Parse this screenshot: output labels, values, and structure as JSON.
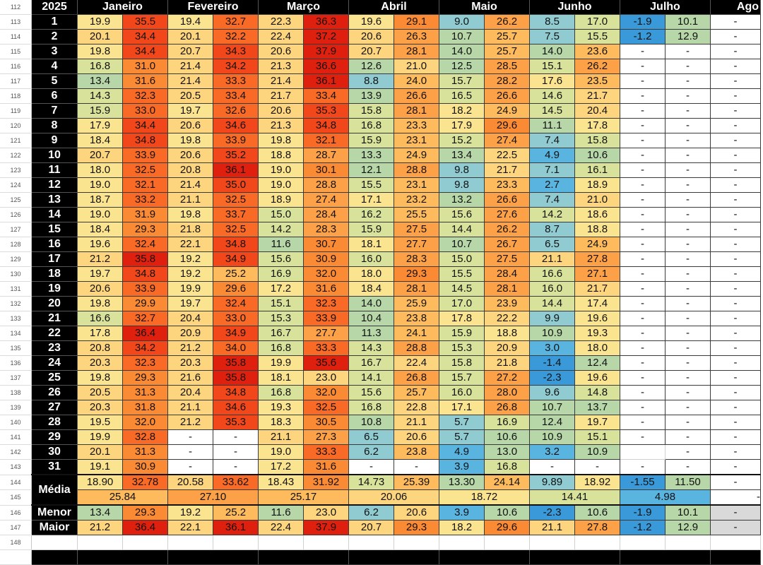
{
  "row_numbers": [
    "112",
    "113",
    "114",
    "115",
    "116",
    "117",
    "118",
    "119",
    "120",
    "121",
    "122",
    "123",
    "124",
    "125",
    "126",
    "127",
    "128",
    "129",
    "130",
    "131",
    "132",
    "133",
    "134",
    "135",
    "136",
    "137",
    "138",
    "139",
    "140",
    "141",
    "142",
    "143",
    "144",
    "145",
    "146",
    "147",
    "148"
  ],
  "year": "2025",
  "months": [
    "Janeiro",
    "Fevereiro",
    "Março",
    "Abril",
    "Maio",
    "Junho",
    "Julho"
  ],
  "partial_month": "Ago",
  "days": [
    {
      "day": "1",
      "cells": [
        "19.9",
        "35.5",
        "19.4",
        "32.7",
        "22.3",
        "36.3",
        "19.6",
        "29.1",
        "9.0",
        "26.2",
        "8.5",
        "17.0",
        "-1.9",
        "10.1",
        "-"
      ]
    },
    {
      "day": "2",
      "cells": [
        "20.1",
        "34.4",
        "20.1",
        "32.2",
        "22.4",
        "37.2",
        "20.6",
        "26.3",
        "10.7",
        "25.7",
        "7.5",
        "15.5",
        "-1.2",
        "12.9",
        "-"
      ]
    },
    {
      "day": "3",
      "cells": [
        "19.8",
        "34.4",
        "20.7",
        "34.3",
        "20.6",
        "37.9",
        "20.7",
        "28.1",
        "14.0",
        "25.7",
        "14.0",
        "23.6",
        "-",
        "-",
        "-"
      ]
    },
    {
      "day": "4",
      "cells": [
        "16.8",
        "31.0",
        "21.4",
        "34.2",
        "21.3",
        "36.6",
        "12.6",
        "21.0",
        "12.5",
        "28.5",
        "15.1",
        "26.2",
        "-",
        "-",
        "-"
      ]
    },
    {
      "day": "5",
      "cells": [
        "13.4",
        "31.6",
        "21.4",
        "33.3",
        "21.4",
        "36.1",
        "8.8",
        "24.0",
        "15.7",
        "28.2",
        "17.6",
        "23.5",
        "-",
        "-",
        "-"
      ]
    },
    {
      "day": "6",
      "cells": [
        "14.3",
        "32.3",
        "20.5",
        "33.4",
        "21.7",
        "33.4",
        "13.9",
        "26.6",
        "16.5",
        "26.6",
        "14.6",
        "21.7",
        "-",
        "-",
        "-"
      ]
    },
    {
      "day": "7",
      "cells": [
        "15.9",
        "33.0",
        "19.7",
        "32.6",
        "20.6",
        "35.3",
        "15.8",
        "28.1",
        "18.2",
        "24.9",
        "14.5",
        "20.4",
        "-",
        "-",
        "-"
      ]
    },
    {
      "day": "8",
      "cells": [
        "17.9",
        "34.4",
        "20.6",
        "34.6",
        "21.3",
        "34.8",
        "16.8",
        "23.3",
        "17.9",
        "29.6",
        "11.1",
        "17.8",
        "-",
        "-",
        "-"
      ]
    },
    {
      "day": "9",
      "cells": [
        "18.4",
        "34.8",
        "19.8",
        "33.9",
        "19.8",
        "32.1",
        "15.9",
        "23.1",
        "15.2",
        "27.4",
        "7.4",
        "15.8",
        "-",
        "-",
        "-"
      ]
    },
    {
      "day": "10",
      "cells": [
        "20.7",
        "33.9",
        "20.6",
        "35.2",
        "18.8",
        "28.7",
        "13.3",
        "24.9",
        "13.4",
        "22.5",
        "4.9",
        "10.6",
        "-",
        "-",
        "-"
      ]
    },
    {
      "day": "11",
      "cells": [
        "18.0",
        "32.5",
        "20.8",
        "36.1",
        "19.0",
        "30.1",
        "12.1",
        "28.8",
        "9.8",
        "21.7",
        "7.1",
        "16.1",
        "-",
        "-",
        "-"
      ]
    },
    {
      "day": "12",
      "cells": [
        "19.0",
        "32.1",
        "21.4",
        "35.0",
        "19.0",
        "28.8",
        "15.5",
        "23.1",
        "9.8",
        "23.3",
        "2.7",
        "18.9",
        "-",
        "-",
        "-"
      ]
    },
    {
      "day": "13",
      "cells": [
        "18.7",
        "33.2",
        "21.1",
        "32.5",
        "18.9",
        "27.4",
        "17.1",
        "23.2",
        "13.2",
        "26.6",
        "7.4",
        "21.0",
        "-",
        "-",
        "-"
      ]
    },
    {
      "day": "14",
      "cells": [
        "19.0",
        "31.9",
        "19.8",
        "33.7",
        "15.0",
        "28.4",
        "16.2",
        "25.5",
        "15.6",
        "27.6",
        "14.2",
        "18.6",
        "-",
        "-",
        "-"
      ]
    },
    {
      "day": "15",
      "cells": [
        "18.4",
        "29.3",
        "21.8",
        "32.5",
        "14.2",
        "28.3",
        "15.9",
        "27.5",
        "14.4",
        "26.2",
        "8.7",
        "18.8",
        "-",
        "-",
        "-"
      ]
    },
    {
      "day": "16",
      "cells": [
        "19.6",
        "32.4",
        "22.1",
        "34.8",
        "11.6",
        "30.7",
        "18.1",
        "27.7",
        "10.7",
        "26.7",
        "6.5",
        "24.9",
        "-",
        "-",
        "-"
      ]
    },
    {
      "day": "17",
      "cells": [
        "21.2",
        "35.8",
        "19.2",
        "34.9",
        "15.6",
        "30.9",
        "16.0",
        "28.3",
        "15.0",
        "27.5",
        "21.1",
        "27.8",
        "-",
        "-",
        "-"
      ]
    },
    {
      "day": "18",
      "cells": [
        "19.7",
        "34.8",
        "19.2",
        "25.2",
        "16.9",
        "32.0",
        "18.0",
        "29.3",
        "15.5",
        "28.4",
        "16.6",
        "27.1",
        "-",
        "-",
        "-"
      ]
    },
    {
      "day": "19",
      "cells": [
        "20.6",
        "33.9",
        "19.9",
        "29.6",
        "17.2",
        "31.6",
        "18.4",
        "28.1",
        "14.5",
        "28.1",
        "16.0",
        "21.7",
        "-",
        "-",
        "-"
      ]
    },
    {
      "day": "20",
      "cells": [
        "19.8",
        "29.9",
        "19.7",
        "32.4",
        "15.1",
        "32.3",
        "14.0",
        "25.9",
        "17.0",
        "23.9",
        "14.4",
        "17.4",
        "-",
        "-",
        "-"
      ]
    },
    {
      "day": "21",
      "cells": [
        "16.6",
        "32.7",
        "20.4",
        "33.0",
        "15.3",
        "33.9",
        "10.4",
        "23.8",
        "17.8",
        "22.2",
        "9.9",
        "19.6",
        "-",
        "-",
        "-"
      ]
    },
    {
      "day": "22",
      "cells": [
        "17.8",
        "36.4",
        "20.9",
        "34.9",
        "16.7",
        "27.7",
        "11.3",
        "24.1",
        "15.9",
        "18.8",
        "10.9",
        "19.3",
        "-",
        "-",
        "-"
      ]
    },
    {
      "day": "23",
      "cells": [
        "20.8",
        "34.2",
        "21.2",
        "34.0",
        "16.8",
        "33.3",
        "14.3",
        "28.8",
        "15.3",
        "20.9",
        "3.0",
        "18.0",
        "-",
        "-",
        "-"
      ]
    },
    {
      "day": "24",
      "cells": [
        "20.3",
        "32.3",
        "20.3",
        "35.8",
        "19.9",
        "35.6",
        "16.7",
        "22.4",
        "15.8",
        "21.8",
        "-1.4",
        "12.4",
        "-",
        "-",
        "-"
      ]
    },
    {
      "day": "25",
      "cells": [
        "19.8",
        "29.3",
        "21.6",
        "35.8",
        "18.1",
        "23.0",
        "14.1",
        "26.8",
        "15.7",
        "27.2",
        "-2.3",
        "19.6",
        "-",
        "-",
        "-"
      ]
    },
    {
      "day": "26",
      "cells": [
        "20.5",
        "31.3",
        "20.4",
        "34.8",
        "16.8",
        "32.0",
        "15.6",
        "25.7",
        "16.0",
        "28.0",
        "9.6",
        "14.8",
        "-",
        "-",
        "-"
      ]
    },
    {
      "day": "27",
      "cells": [
        "20.3",
        "31.8",
        "21.1",
        "34.6",
        "19.3",
        "32.5",
        "16.8",
        "22.8",
        "17.1",
        "26.8",
        "10.7",
        "13.7",
        "-",
        "-",
        "-"
      ]
    },
    {
      "day": "28",
      "cells": [
        "19.5",
        "32.0",
        "21.2",
        "35.3",
        "18.3",
        "30.5",
        "10.8",
        "21.1",
        "5.7",
        "16.9",
        "12.4",
        "19.7",
        "-",
        "-",
        "-"
      ]
    },
    {
      "day": "29",
      "cells": [
        "19.9",
        "32.8",
        "-",
        "-",
        "21.1",
        "27.3",
        "6.5",
        "20.6",
        "5.7",
        "10.6",
        "10.9",
        "15.1",
        "-",
        "-",
        "-"
      ]
    },
    {
      "day": "30",
      "cells": [
        "20.1",
        "31.3",
        "-",
        "-",
        "19.0",
        "33.3",
        "6.2",
        "23.8",
        "4.9",
        "13.0",
        "3.2",
        "10.9",
        "",
        "-",
        "-"
      ]
    },
    {
      "day": "31",
      "cells": [
        "19.1",
        "30.9",
        "-",
        "-",
        "17.2",
        "31.6",
        "-",
        "-",
        "3.9",
        "16.8",
        "-",
        "-",
        "-",
        "-",
        "-"
      ]
    }
  ],
  "summary": {
    "media_label": "Média",
    "media": [
      "18.90",
      "32.78",
      "20.58",
      "33.62",
      "18.43",
      "31.92",
      "14.73",
      "25.39",
      "13.30",
      "24.14",
      "9.89",
      "18.92",
      "-1.55",
      "11.50",
      "-"
    ],
    "overall": [
      "25.84",
      "27.10",
      "25.17",
      "20.06",
      "18.72",
      "14.41",
      "4.98",
      "-"
    ],
    "menor_label": "Menor",
    "menor": [
      "13.4",
      "29.3",
      "19.2",
      "25.2",
      "11.6",
      "23.0",
      "6.2",
      "20.6",
      "3.9",
      "10.6",
      "-2.3",
      "10.6",
      "-1.9",
      "10.1",
      "-"
    ],
    "maior_label": "Maior",
    "maior": [
      "21.2",
      "36.4",
      "22.1",
      "36.1",
      "22.4",
      "37.9",
      "20.7",
      "29.3",
      "18.2",
      "29.6",
      "21.1",
      "27.8",
      "-1.2",
      "12.9",
      "-"
    ]
  },
  "color_scale": [
    {
      "max": 0,
      "color": "#3a9ad9"
    },
    {
      "max": 5,
      "color": "#5ab4e0"
    },
    {
      "max": 10,
      "color": "#8fcbd0"
    },
    {
      "max": 14,
      "color": "#b7d7a8"
    },
    {
      "max": 17,
      "color": "#d9e29a"
    },
    {
      "max": 20,
      "color": "#fbe48f"
    },
    {
      "max": 23,
      "color": "#fdd57e"
    },
    {
      "max": 26,
      "color": "#fdbb5e"
    },
    {
      "max": 29,
      "color": "#fca147"
    },
    {
      "max": 32,
      "color": "#fb8a35"
    },
    {
      "max": 34,
      "color": "#f86a25"
    },
    {
      "max": 35.5,
      "color": "#f2461b"
    },
    {
      "max": 100,
      "color": "#e0200f"
    }
  ]
}
